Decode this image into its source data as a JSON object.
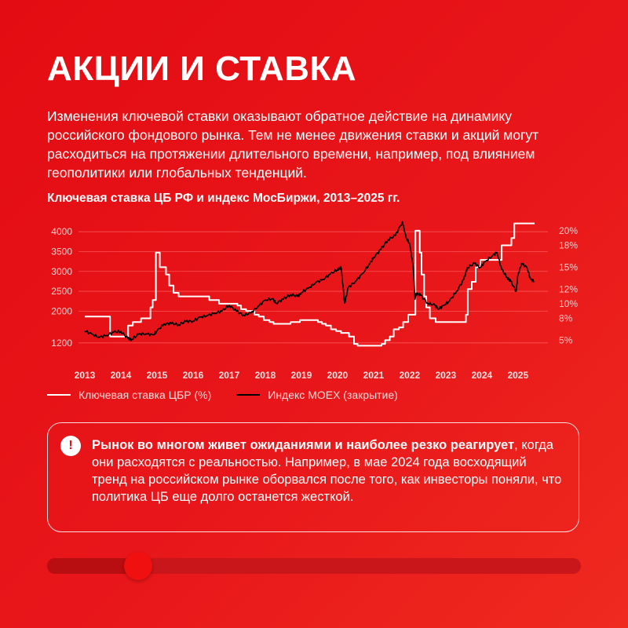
{
  "page": {
    "title": "АКЦИИ И СТАВКА",
    "intro": "Изменения ключевой ставки оказывают обратное действие на динамику российского фондового рынка. Тем не менее движения ставки и акций могут расходиться на протяжении длительного времени, например, под влиянием геополитики или глобальных тенденций."
  },
  "note": {
    "bold": "Рынок во многом живет ожиданиями и наиболее резко реагирует",
    "text": ", когда они расходятся с реальностью. Например, в мае 2024 года восходящий тренд на российском рынке оборвался после того, как инвесторы поняли, что политика ЦБ еще долго останется жесткой.",
    "icon": "exclamation-icon"
  },
  "progress": {
    "value": 0.17
  },
  "colors": {
    "background": "#e30c12",
    "rate_line": "#ffffff",
    "moex_line": "#000000",
    "grid": "#ff6a6a"
  },
  "chart_data": {
    "type": "line",
    "title": "Ключевая ставка ЦБ РФ и индекс МосБиржи, 2013–2025 гг.",
    "x_range": [
      2013,
      2025.7
    ],
    "x_ticks": [
      "2013",
      "2014",
      "2015",
      "2016",
      "2017",
      "2018",
      "2019",
      "2020",
      "2021",
      "2022",
      "2023",
      "2024",
      "2025"
    ],
    "y_left": {
      "range": [
        900,
        4300
      ],
      "ticks": [
        1200,
        2000,
        2500,
        3000,
        3500,
        4000
      ]
    },
    "y_right": {
      "range": [
        3,
        21.5
      ],
      "ticks": [
        5,
        8,
        10,
        12,
        15,
        18,
        20
      ],
      "tick_suffix": "%"
    },
    "grid": "horizontal",
    "legend_position": "bottom",
    "series": [
      {
        "name": "Ключевая ставка ЦБР (%)",
        "axis": "right",
        "color": "#ffffff",
        "step": true,
        "points": [
          [
            2013.0,
            8.25
          ],
          [
            2013.7,
            5.5
          ],
          [
            2014.2,
            7.0
          ],
          [
            2014.33,
            7.5
          ],
          [
            2014.56,
            8.0
          ],
          [
            2014.82,
            9.5
          ],
          [
            2014.88,
            10.5
          ],
          [
            2014.97,
            17.0
          ],
          [
            2015.08,
            15.0
          ],
          [
            2015.25,
            14.0
          ],
          [
            2015.34,
            12.5
          ],
          [
            2015.46,
            11.5
          ],
          [
            2015.6,
            11.0
          ],
          [
            2016.45,
            10.5
          ],
          [
            2016.72,
            10.0
          ],
          [
            2017.23,
            9.75
          ],
          [
            2017.33,
            9.25
          ],
          [
            2017.47,
            9.0
          ],
          [
            2017.7,
            8.5
          ],
          [
            2017.82,
            8.25
          ],
          [
            2017.96,
            7.75
          ],
          [
            2018.12,
            7.5
          ],
          [
            2018.23,
            7.25
          ],
          [
            2018.7,
            7.5
          ],
          [
            2018.96,
            7.75
          ],
          [
            2019.46,
            7.5
          ],
          [
            2019.57,
            7.25
          ],
          [
            2019.68,
            7.0
          ],
          [
            2019.82,
            6.5
          ],
          [
            2019.96,
            6.25
          ],
          [
            2020.1,
            6.0
          ],
          [
            2020.32,
            5.5
          ],
          [
            2020.46,
            4.5
          ],
          [
            2020.56,
            4.25
          ],
          [
            2021.22,
            4.5
          ],
          [
            2021.32,
            5.0
          ],
          [
            2021.45,
            5.5
          ],
          [
            2021.56,
            6.5
          ],
          [
            2021.7,
            6.75
          ],
          [
            2021.82,
            7.5
          ],
          [
            2021.96,
            8.5
          ],
          [
            2022.16,
            20.0
          ],
          [
            2022.28,
            17.0
          ],
          [
            2022.33,
            14.0
          ],
          [
            2022.4,
            11.0
          ],
          [
            2022.46,
            9.5
          ],
          [
            2022.56,
            8.0
          ],
          [
            2022.72,
            7.5
          ],
          [
            2023.56,
            8.5
          ],
          [
            2023.61,
            12.0
          ],
          [
            2023.72,
            13.0
          ],
          [
            2023.83,
            15.0
          ],
          [
            2023.96,
            16.0
          ],
          [
            2024.55,
            18.0
          ],
          [
            2024.82,
            19.0
          ],
          [
            2024.9,
            21.0
          ],
          [
            2025.4,
            21.0
          ]
        ]
      },
      {
        "name": "Индекс MOEX (закрытие)",
        "axis": "left",
        "color": "#000000",
        "step": false,
        "points": [
          [
            2013.0,
            1500
          ],
          [
            2013.2,
            1420
          ],
          [
            2013.4,
            1340
          ],
          [
            2013.6,
            1390
          ],
          [
            2013.8,
            1470
          ],
          [
            2014.0,
            1490
          ],
          [
            2014.2,
            1310
          ],
          [
            2014.3,
            1290
          ],
          [
            2014.5,
            1420
          ],
          [
            2014.7,
            1430
          ],
          [
            2014.9,
            1400
          ],
          [
            2015.0,
            1500
          ],
          [
            2015.2,
            1680
          ],
          [
            2015.4,
            1690
          ],
          [
            2015.6,
            1660
          ],
          [
            2015.8,
            1740
          ],
          [
            2016.0,
            1750
          ],
          [
            2016.2,
            1850
          ],
          [
            2016.4,
            1890
          ],
          [
            2016.6,
            1950
          ],
          [
            2016.8,
            2000
          ],
          [
            2017.0,
            2150
          ],
          [
            2017.2,
            2000
          ],
          [
            2017.4,
            1900
          ],
          [
            2017.6,
            1950
          ],
          [
            2017.8,
            2120
          ],
          [
            2018.0,
            2280
          ],
          [
            2018.2,
            2310
          ],
          [
            2018.3,
            2200
          ],
          [
            2018.5,
            2300
          ],
          [
            2018.7,
            2420
          ],
          [
            2018.9,
            2370
          ],
          [
            2019.0,
            2470
          ],
          [
            2019.2,
            2580
          ],
          [
            2019.4,
            2720
          ],
          [
            2019.6,
            2800
          ],
          [
            2019.8,
            2930
          ],
          [
            2020.0,
            3050
          ],
          [
            2020.1,
            3100
          ],
          [
            2020.2,
            2200
          ],
          [
            2020.3,
            2600
          ],
          [
            2020.5,
            2750
          ],
          [
            2020.7,
            2950
          ],
          [
            2020.9,
            3200
          ],
          [
            2021.0,
            3350
          ],
          [
            2021.2,
            3550
          ],
          [
            2021.4,
            3800
          ],
          [
            2021.6,
            3900
          ],
          [
            2021.8,
            4250
          ],
          [
            2021.9,
            3850
          ],
          [
            2022.0,
            3700
          ],
          [
            2022.1,
            3100
          ],
          [
            2022.15,
            2300
          ],
          [
            2022.18,
            2450
          ],
          [
            2022.3,
            2400
          ],
          [
            2022.5,
            2200
          ],
          [
            2022.7,
            2150
          ],
          [
            2022.8,
            2050
          ],
          [
            2022.95,
            2150
          ],
          [
            2023.1,
            2250
          ],
          [
            2023.3,
            2500
          ],
          [
            2023.5,
            2800
          ],
          [
            2023.6,
            3100
          ],
          [
            2023.8,
            3200
          ],
          [
            2023.95,
            3100
          ],
          [
            2024.1,
            3250
          ],
          [
            2024.3,
            3400
          ],
          [
            2024.42,
            3480
          ],
          [
            2024.55,
            3050
          ],
          [
            2024.7,
            2850
          ],
          [
            2024.8,
            2750
          ],
          [
            2024.95,
            2500
          ],
          [
            2025.0,
            2900
          ],
          [
            2025.1,
            3200
          ],
          [
            2025.25,
            3100
          ],
          [
            2025.35,
            2800
          ],
          [
            2025.45,
            2750
          ]
        ]
      }
    ]
  }
}
